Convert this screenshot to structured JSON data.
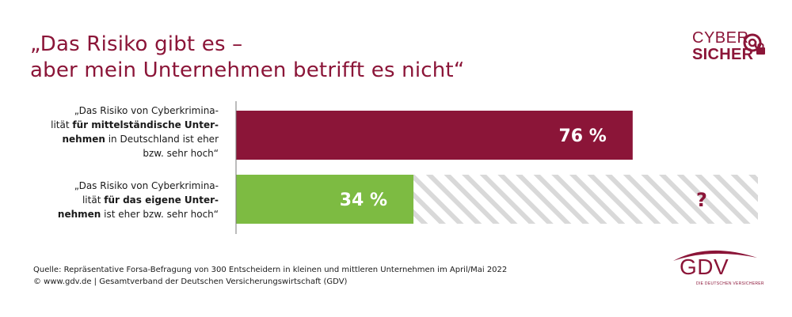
{
  "title": {
    "line1": "„Das Risiko gibt es –",
    "line2": "aber mein Unternehmen betrifft es nicht“"
  },
  "logo": {
    "line1": "CYBER",
    "line2": "SICHER",
    "icon": "lock-at-icon"
  },
  "chart_data": {
    "type": "bar",
    "orientation": "horizontal",
    "categories": [
      "„Das Risiko von Cyberkriminalität für mittelständische Unternehmen in Deutschland ist eher bzw. sehr hoch“",
      "„Das Risiko von Cyberkriminalität für das eigene Unternehmen ist eher bzw. sehr hoch“"
    ],
    "values": [
      76,
      34
    ],
    "value_labels": [
      "76 %",
      "34 %"
    ],
    "unknown_label": "?",
    "xlim": [
      0,
      100
    ],
    "colors": [
      "#8b1538",
      "#7dbb42"
    ],
    "hatch_color": "#d9d9d9",
    "labels": [
      {
        "line1a": "„Das Risiko von Cyberkrimina-",
        "line2a": "lität ",
        "line2b": "für mittelständische Unter-",
        "line3a": "nehmen",
        "line3b": " in Deutschland ist eher",
        "line4": "bzw. sehr hoch“"
      },
      {
        "line1a": "„Das Risiko von Cyberkrimina-",
        "line2a": "lität ",
        "line2b": "für das eigene Unter-",
        "line3a": "nehmen",
        "line3b": " ist eher bzw. sehr hoch“"
      }
    ]
  },
  "source": {
    "line1": "Quelle: Repräsentative Forsa-Befragung von 300 Entscheidern in kleinen und mittleren Unternehmen im April/Mai 2022",
    "line2": "© www.gdv.de | Gesamtverband der Deutschen Versicherungswirtschaft (GDV)"
  },
  "gdv_logo": {
    "text": "GDV",
    "tagline": "DIE DEUTSCHEN VERSICHERER"
  },
  "colors": {
    "brand": "#8b1538",
    "green": "#7dbb42",
    "hatch": "#d9d9d9",
    "text": "#1a1a1a"
  }
}
